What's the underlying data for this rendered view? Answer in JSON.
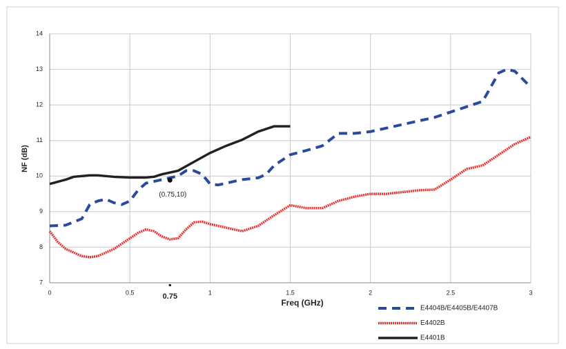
{
  "chart_data": {
    "type": "line",
    "xlabel": "Freq (GHz)",
    "ylabel": "NF (dB)",
    "xlim": [
      0,
      3
    ],
    "ylim": [
      7,
      14
    ],
    "xticks": [
      0,
      0.5,
      1,
      1.5,
      2,
      2.5,
      3
    ],
    "yticks": [
      7,
      8,
      9,
      10,
      11,
      12,
      13,
      14
    ],
    "grid": true,
    "legend": "bottom-right",
    "annotations": [
      {
        "text": "(0.75,10)",
        "x": 0.75,
        "y": 10
      },
      {
        "text": "0.75",
        "x": 0.75
      }
    ],
    "series": [
      {
        "name": "E4404B/E4405B/E4407B",
        "color": "#2a4b9b",
        "style": "dashed",
        "x": [
          0,
          0.1,
          0.2,
          0.25,
          0.3,
          0.35,
          0.4,
          0.45,
          0.5,
          0.55,
          0.6,
          0.7,
          0.8,
          0.85,
          0.9,
          0.95,
          1.0,
          1.05,
          1.1,
          1.2,
          1.3,
          1.35,
          1.4,
          1.5,
          1.6,
          1.7,
          1.8,
          1.9,
          2.0,
          2.1,
          2.2,
          2.3,
          2.4,
          2.5,
          2.6,
          2.7,
          2.8,
          2.85,
          2.9,
          3.0
        ],
        "values": [
          8.6,
          8.62,
          8.8,
          9.2,
          9.3,
          9.35,
          9.25,
          9.2,
          9.3,
          9.6,
          9.8,
          9.9,
          10.0,
          10.15,
          10.15,
          10.05,
          9.78,
          9.75,
          9.8,
          9.9,
          9.95,
          10.05,
          10.3,
          10.6,
          10.72,
          10.85,
          11.2,
          11.2,
          11.25,
          11.35,
          11.45,
          11.55,
          11.65,
          11.8,
          11.95,
          12.1,
          12.9,
          13.0,
          12.95,
          12.5
        ]
      },
      {
        "name": "E4402B",
        "color": "#e8302e",
        "style": "dotted",
        "x": [
          0,
          0.05,
          0.1,
          0.15,
          0.2,
          0.25,
          0.3,
          0.4,
          0.5,
          0.55,
          0.6,
          0.65,
          0.7,
          0.75,
          0.8,
          0.85,
          0.9,
          0.95,
          1.0,
          1.1,
          1.2,
          1.3,
          1.4,
          1.5,
          1.6,
          1.7,
          1.8,
          1.9,
          2.0,
          2.1,
          2.2,
          2.3,
          2.4,
          2.5,
          2.6,
          2.7,
          2.8,
          2.9,
          3.0
        ],
        "values": [
          8.45,
          8.15,
          7.95,
          7.85,
          7.75,
          7.72,
          7.75,
          7.95,
          8.25,
          8.4,
          8.5,
          8.45,
          8.3,
          8.22,
          8.25,
          8.5,
          8.7,
          8.72,
          8.65,
          8.55,
          8.45,
          8.6,
          8.9,
          9.18,
          9.1,
          9.1,
          9.3,
          9.42,
          9.5,
          9.5,
          9.55,
          9.6,
          9.62,
          9.9,
          10.2,
          10.3,
          10.6,
          10.9,
          11.1
        ]
      },
      {
        "name": "E4401B",
        "color": "#222222",
        "style": "solid",
        "x": [
          0,
          0.1,
          0.15,
          0.25,
          0.3,
          0.4,
          0.5,
          0.6,
          0.65,
          0.7,
          0.8,
          0.9,
          1.0,
          1.1,
          1.2,
          1.3,
          1.4,
          1.5
        ],
        "values": [
          9.78,
          9.9,
          9.98,
          10.02,
          10.02,
          9.98,
          9.96,
          9.96,
          9.98,
          10.05,
          10.15,
          10.4,
          10.65,
          10.85,
          11.02,
          11.25,
          11.4,
          11.4
        ]
      }
    ]
  }
}
